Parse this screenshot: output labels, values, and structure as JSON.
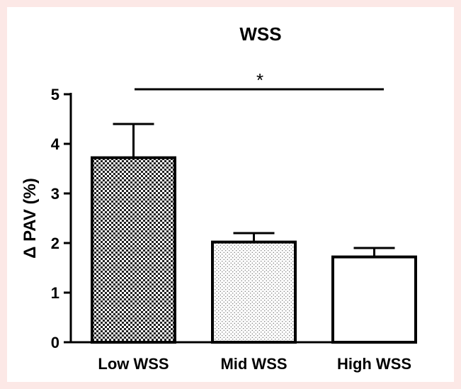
{
  "chart_data": {
    "type": "bar",
    "title": "WSS",
    "ylabel": "Δ PAV (%)",
    "xlabel": "",
    "categories": [
      "Low WSS",
      "Mid WSS",
      "High WSS"
    ],
    "values": [
      3.72,
      2.02,
      1.72
    ],
    "errors": [
      0.68,
      0.18,
      0.18
    ],
    "ylim": [
      0,
      5
    ],
    "yticks": [
      "0",
      "1",
      "2",
      "3",
      "4",
      "5"
    ],
    "bar_fills": [
      "checkered-dark",
      "dotted-light",
      "white"
    ],
    "grid": false,
    "significance": {
      "from": "Low WSS",
      "to": "High WSS",
      "label": "*"
    }
  }
}
